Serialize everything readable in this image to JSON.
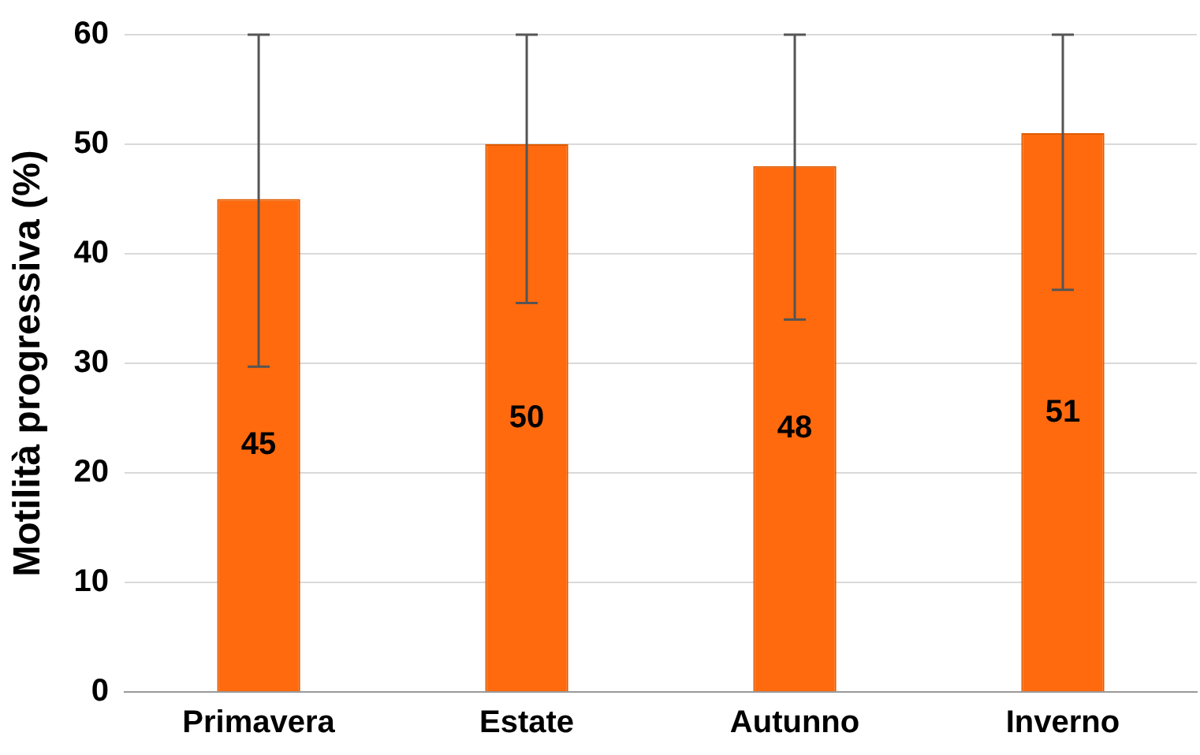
{
  "chart_data": {
    "type": "bar",
    "ylabel": "Motilità progressiva (%)",
    "categories": [
      "Primavera",
      "Estate",
      "Autunno",
      "Inverno"
    ],
    "values": [
      45,
      50,
      48,
      51
    ],
    "color": "#ff6a0e",
    "errors": [
      [
        29.7,
        60
      ],
      [
        35.5,
        60
      ],
      [
        34,
        60
      ],
      [
        36.7,
        60
      ]
    ],
    "ylim": [
      0,
      60
    ],
    "yticks": [
      0,
      10,
      20,
      30,
      40,
      50,
      60
    ],
    "grid": "y",
    "legend": false,
    "data_labels": true
  }
}
